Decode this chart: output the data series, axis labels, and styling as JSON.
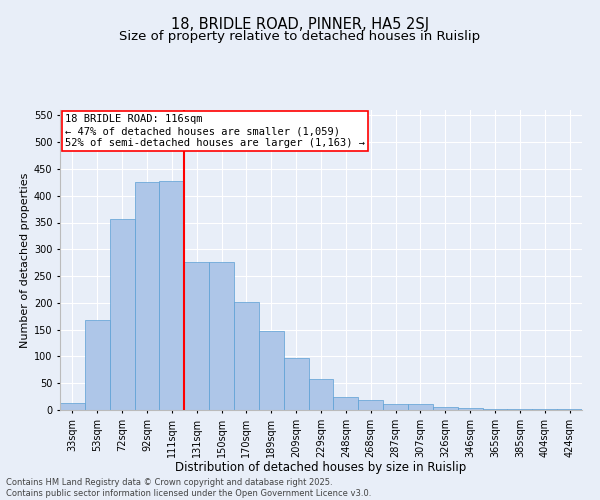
{
  "title_line1": "18, BRIDLE ROAD, PINNER, HA5 2SJ",
  "title_line2": "Size of property relative to detached houses in Ruislip",
  "xlabel": "Distribution of detached houses by size in Ruislip",
  "ylabel": "Number of detached properties",
  "categories": [
    "33sqm",
    "53sqm",
    "72sqm",
    "92sqm",
    "111sqm",
    "131sqm",
    "150sqm",
    "170sqm",
    "189sqm",
    "209sqm",
    "229sqm",
    "248sqm",
    "268sqm",
    "287sqm",
    "307sqm",
    "326sqm",
    "346sqm",
    "365sqm",
    "385sqm",
    "404sqm",
    "424sqm"
  ],
  "values": [
    13,
    168,
    357,
    425,
    428,
    276,
    276,
    202,
    148,
    98,
    57,
    25,
    18,
    11,
    11,
    6,
    4,
    2,
    2,
    1,
    1
  ],
  "bar_color": "#aec6e8",
  "bar_edge_color": "#5a9fd4",
  "vline_x": 4.5,
  "vline_color": "red",
  "annotation_text": "18 BRIDLE ROAD: 116sqm\n← 47% of detached houses are smaller (1,059)\n52% of semi-detached houses are larger (1,163) →",
  "annotation_box_color": "white",
  "annotation_box_edge": "red",
  "ylim": [
    0,
    560
  ],
  "yticks": [
    0,
    50,
    100,
    150,
    200,
    250,
    300,
    350,
    400,
    450,
    500,
    550
  ],
  "background_color": "#e8eef8",
  "grid_color": "white",
  "footer": "Contains HM Land Registry data © Crown copyright and database right 2025.\nContains public sector information licensed under the Open Government Licence v3.0.",
  "title_fontsize": 10.5,
  "subtitle_fontsize": 9.5,
  "xlabel_fontsize": 8.5,
  "ylabel_fontsize": 8,
  "tick_fontsize": 7,
  "annotation_fontsize": 7.5,
  "footer_fontsize": 6
}
